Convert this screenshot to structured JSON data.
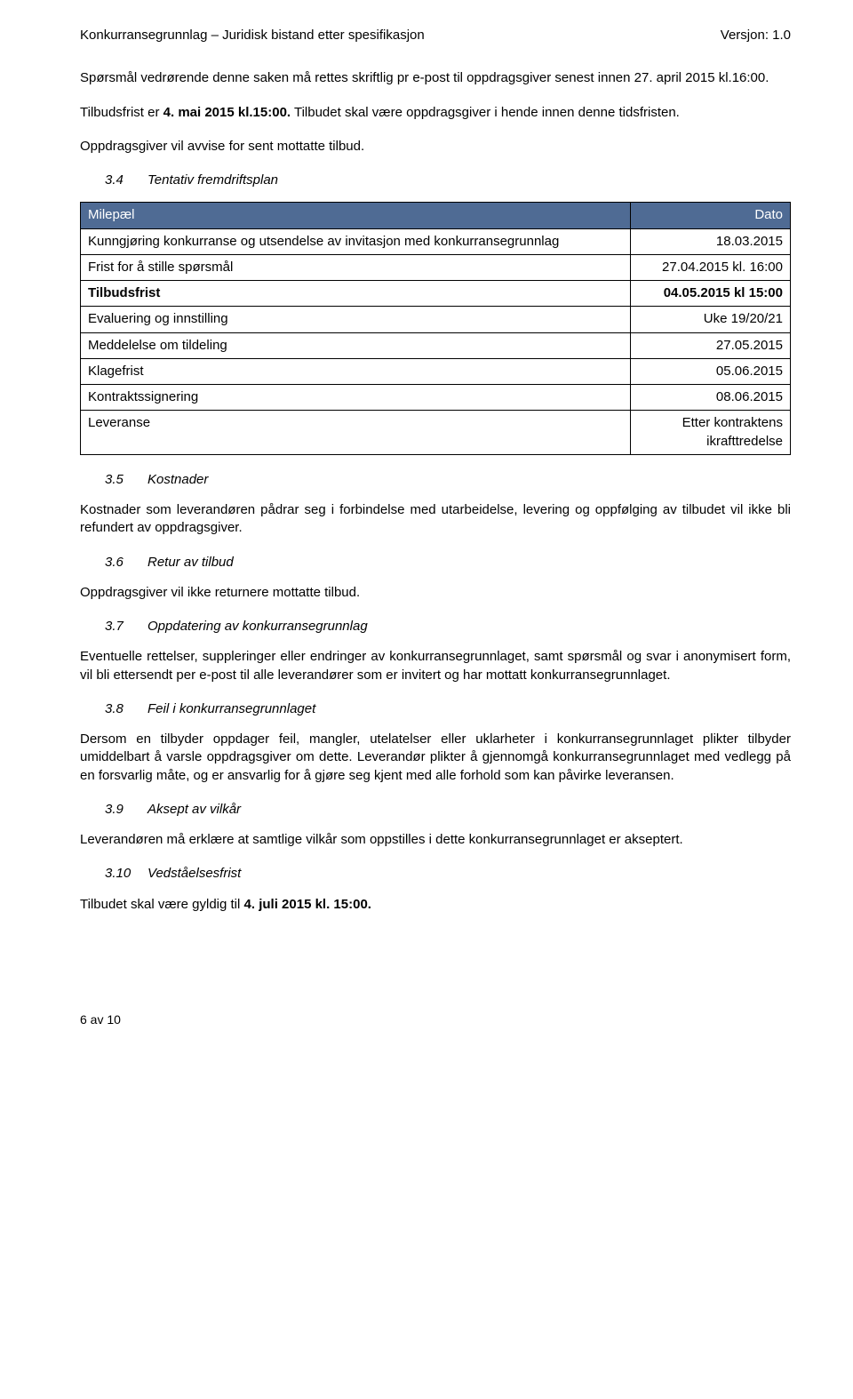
{
  "header": {
    "left": "Konkurransegrunnlag – Juridisk bistand etter spesifikasjon",
    "right": "Versjon: 1.0"
  },
  "intro": {
    "p1": "Spørsmål vedrørende denne saken må rettes skriftlig pr e-post til oppdragsgiver senest innen 27. april 2015 kl.16:00.",
    "p2a": "Tilbudsfrist er ",
    "p2b": "4. mai 2015 kl.15:00.",
    "p2c": " Tilbudet skal være oppdragsgiver i hende innen denne tidsfristen.",
    "p3": "Oppdragsgiver vil avvise for sent mottatte tilbud."
  },
  "sections": {
    "s34": {
      "num": "3.4",
      "title": "Tentativ fremdriftsplan"
    },
    "s35": {
      "num": "3.5",
      "title": "Kostnader"
    },
    "s36": {
      "num": "3.6",
      "title": "Retur av tilbud"
    },
    "s37": {
      "num": "3.7",
      "title": "Oppdatering av konkurransegrunnlag"
    },
    "s38": {
      "num": "3.8",
      "title": "Feil i konkurransegrunnlaget"
    },
    "s39": {
      "num": "3.9",
      "title": "Aksept av vilkår"
    },
    "s310": {
      "num": "3.10",
      "title": "Vedståelsesfrist"
    }
  },
  "table": {
    "head_left": "Milepæl",
    "head_right": "Dato",
    "rows": [
      {
        "label": "Kunngjøring konkurranse og utsendelse av invitasjon med konkurransegrunnlag",
        "value": "18.03.2015",
        "bold": false
      },
      {
        "label": "Frist for å stille spørsmål",
        "value": "27.04.2015 kl. 16:00",
        "bold": false
      },
      {
        "label": "Tilbudsfrist",
        "value": "04.05.2015 kl 15:00",
        "bold": true
      },
      {
        "label": "Evaluering og innstilling",
        "value": "Uke 19/20/21",
        "bold": false
      },
      {
        "label": "Meddelelse om tildeling",
        "value": "27.05.2015",
        "bold": false
      },
      {
        "label": "Klagefrist",
        "value": "05.06.2015",
        "bold": false
      },
      {
        "label": "Kontraktssignering",
        "value": "08.06.2015",
        "bold": false
      },
      {
        "label": "Leveranse",
        "value": "Etter kontraktens ikrafttredelse",
        "bold": false
      }
    ]
  },
  "body": {
    "s35p": "Kostnader som leverandøren pådrar seg i forbindelse med utarbeidelse, levering og oppfølging av tilbudet vil ikke bli refundert av oppdragsgiver.",
    "s36p": "Oppdragsgiver vil ikke returnere mottatte tilbud.",
    "s37p": "Eventuelle rettelser, suppleringer eller endringer av konkurransegrunnlaget, samt spørsmål og svar i anonymisert form, vil bli ettersendt per e-post til alle leverandører som er invitert og har mottatt konkurransegrunnlaget.",
    "s38p": "Dersom en tilbyder oppdager feil, mangler, utelatelser eller uklarheter i konkurransegrunnlaget plikter tilbyder umiddelbart å varsle oppdragsgiver om dette. Leverandør plikter å gjennomgå konkurransegrunnlaget med vedlegg på en forsvarlig måte, og er ansvarlig for å gjøre seg kjent med alle forhold som kan påvirke leveransen.",
    "s39p": "Leverandøren må erklære at samtlige vilkår som oppstilles i dette konkurransegrunnlaget er akseptert.",
    "s310a": "Tilbudet skal være gyldig til ",
    "s310b": "4. juli 2015 kl. 15:00."
  },
  "footer": "6 av 10"
}
